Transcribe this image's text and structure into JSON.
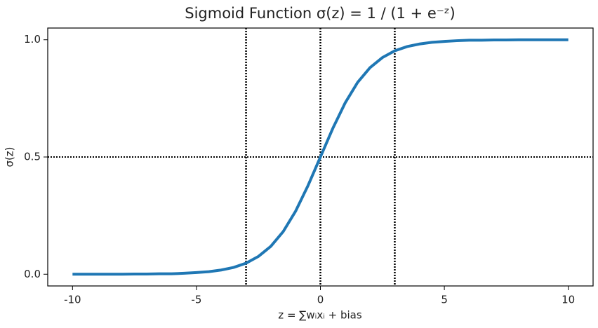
{
  "chart_data": {
    "type": "line",
    "title": "Sigmoid Function σ(z) = 1 / (1 + e⁻ᶻ)",
    "xlabel": "z = ∑wᵢxᵢ + bias",
    "ylabel": "σ(z)",
    "x": [
      -10,
      -9.5,
      -9,
      -8.5,
      -8,
      -7.5,
      -7,
      -6.5,
      -6,
      -5.5,
      -5,
      -4.5,
      -4,
      -3.5,
      -3,
      -2.5,
      -2,
      -1.5,
      -1,
      -0.5,
      0,
      0.5,
      1,
      1.5,
      2,
      2.5,
      3,
      3.5,
      4,
      4.5,
      5,
      5.5,
      6,
      6.5,
      7,
      7.5,
      8,
      8.5,
      9,
      9.5,
      10
    ],
    "series": [
      {
        "color": "#1f77b4",
        "values": [
          0.0,
          0.0,
          0.0,
          0.0,
          0.0,
          0.001,
          0.001,
          0.002,
          0.002,
          0.004,
          0.007,
          0.011,
          0.018,
          0.029,
          0.047,
          0.076,
          0.119,
          0.182,
          0.269,
          0.378,
          0.5,
          0.622,
          0.731,
          0.818,
          0.881,
          0.924,
          0.953,
          0.971,
          0.982,
          0.989,
          0.993,
          0.996,
          0.998,
          0.998,
          0.999,
          0.999,
          1.0,
          1.0,
          1.0,
          1.0,
          1.0
        ]
      }
    ],
    "vlines": [
      -3,
      0,
      3
    ],
    "hlines": [
      0.5
    ],
    "xlim": [
      -11,
      11
    ],
    "ylim": [
      -0.05,
      1.05
    ],
    "xticks": [
      -10,
      -5,
      0,
      5,
      10
    ],
    "yticks": [
      {
        "value": 0,
        "label": "0.0"
      },
      {
        "value": 0.5,
        "label": "0.5"
      },
      {
        "value": 1,
        "label": "1.0"
      }
    ]
  }
}
